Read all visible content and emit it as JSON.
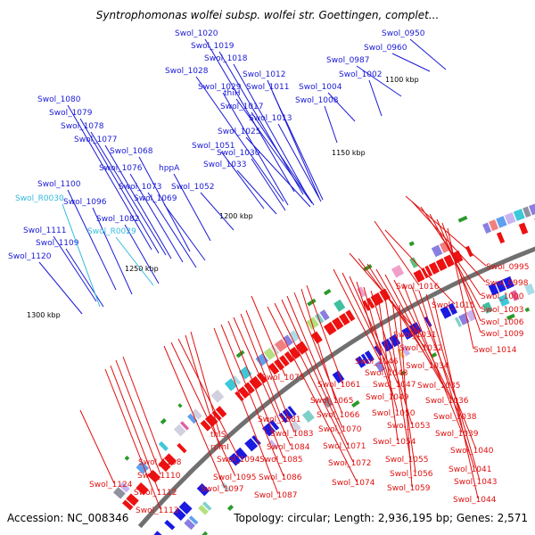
{
  "title": "Syntrophomonas wolfei subsp. wolfei str. Goettingen, complet...",
  "footer": {
    "accession": "Accession: NC_008346",
    "summary": "Topology: circular; Length: 2,936,195 bp; Genes: 2,571"
  },
  "kbp_labels": [
    "1100 kbp",
    "1150 kbp",
    "1200 kbp",
    "1250 kbp",
    "1300 kbp"
  ],
  "colors": {
    "forward_labels": "#1a1ad6",
    "reverse_labels": "#e01010",
    "rna_labels": "#33bbdd",
    "backbone": "#707070",
    "forward_cds": "#1a1ae0",
    "reverse_cds": "#ee1111"
  },
  "labels_blue": [
    "Swol_1020",
    "Swol_1019",
    "Swol_1018",
    "Swol_1028",
    "Swol_1012",
    "Swol_1029",
    "thiH",
    "Swol_1011",
    "Swol_1017",
    "Swol_1013",
    "Swol_1025",
    "Swol_1080",
    "Swol_1079",
    "Swol_1078",
    "Swol_1077",
    "Swol_1068",
    "Swol_1076",
    "hppA",
    "Swol_1051",
    "Swol_1030",
    "Swol_1033",
    "Swol_1073",
    "Swol_1052",
    "Swol_1069",
    "Swol_1100",
    "Swol_1096",
    "Swol_1082",
    "Swol_1111",
    "Swol_1109",
    "Swol_1120",
    "Swol_0950",
    "Swol_0960",
    "Swol_0987",
    "Swol_1002",
    "Swol_1004",
    "Swol_1008"
  ],
  "labels_rna": [
    "Swol_R0030",
    "Swol_R0029"
  ],
  "labels_red": [
    "Swol_0995",
    "Swol_0998",
    "Swol_1016",
    "Swol_1000",
    "Swol_1015",
    "Swol_1003",
    "Swol_1006",
    "Swol_1009",
    "Swol_1031",
    "Swol_1014",
    "Swol_1032",
    "Swol_1046",
    "Swol_1034",
    "Swol_1048",
    "Swol_1075",
    "Swol_1047",
    "Swol_1035",
    "Swol_1061",
    "Swol_1049",
    "Swol_1036",
    "Swol_1065",
    "Swol_1050",
    "Swol_1038",
    "Swol_1066",
    "Swol_1053",
    "Swol_1039",
    "Swol_1070",
    "Swol_1081",
    "Swol_1083",
    "Swol_1054",
    "Swol_1040",
    "thiS",
    "Swol_1071",
    "rpmI",
    "Swol_1084",
    "Swol_1055",
    "Swol_1041",
    "Swol_1094",
    "Swol_1085",
    "Swol_1072",
    "Swol_1108",
    "Swol_1056",
    "Swol_1043",
    "Swol_1110",
    "Swol_1095",
    "Swol_1086",
    "Swol_1074",
    "Swol_1059",
    "Swol_1124",
    "Swol_1097",
    "Swol_1087",
    "Swol_1112",
    "Swol_1044",
    "Swol_1113"
  ]
}
